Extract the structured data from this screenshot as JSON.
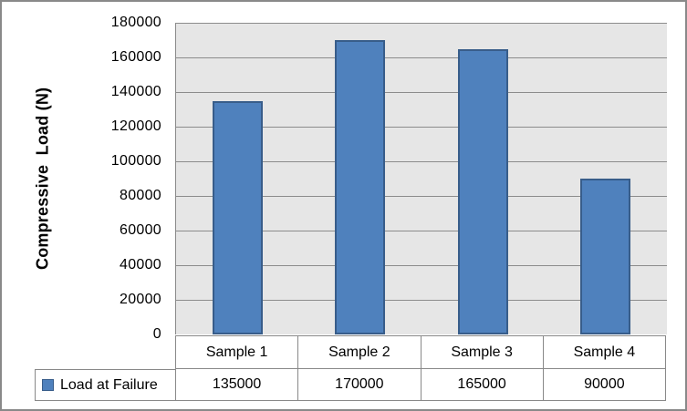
{
  "chart_data": {
    "type": "bar",
    "categories": [
      "Sample 1",
      "Sample 2",
      "Sample 3",
      "Sample 4"
    ],
    "series": [
      {
        "name": "Load at Failure",
        "values": [
          135000,
          170000,
          165000,
          90000
        ]
      }
    ],
    "title": "",
    "xlabel": "",
    "ylabel": "Compressive  Load (N)",
    "ylim": [
      0,
      180000
    ],
    "ytick_step": 20000,
    "ytick_labels": [
      "0",
      "20000",
      "40000",
      "60000",
      "80000",
      "100000",
      "120000",
      "140000",
      "160000",
      "180000"
    ],
    "grid": true,
    "legend_position": "data-table-left",
    "colors": {
      "bar_fill": "#4F81BD",
      "bar_border": "#385D8A",
      "plot_background": "#E6E6E6",
      "gridline": "#8C8C8C",
      "table_border": "#898989",
      "frame_border": "#898989",
      "text": "#000000"
    },
    "data_table": {
      "shown": true,
      "legend_label": "Load at Failure",
      "row_values": [
        "135000",
        "170000",
        "165000",
        "90000"
      ]
    }
  }
}
